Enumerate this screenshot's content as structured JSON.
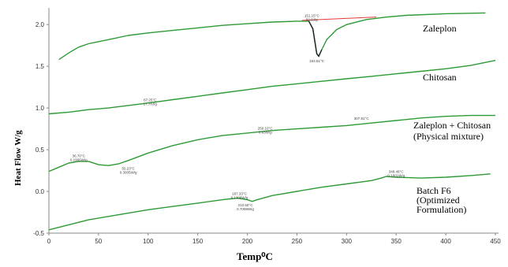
{
  "chart_data": {
    "type": "line",
    "xlabel": "Temp⁰C",
    "ylabel": "Heat Flow W/g",
    "xlim": [
      0,
      450
    ],
    "ylim": [
      -0.5,
      2.2
    ],
    "x_ticks": [
      "0",
      "50",
      "100",
      "150",
      "200",
      "250",
      "300",
      "350",
      "400",
      "450"
    ],
    "y_ticks": [
      "2.0",
      "1.5",
      "1.0",
      "0.5",
      "0.0",
      "-0.5"
    ],
    "grid": false,
    "legend": "right side, label beside each curve",
    "line_color": "#2e9a35",
    "baseline_color": "#e53935",
    "peak_color": "#222222",
    "series": [
      {
        "name": "Zaleplon",
        "points": [
          [
            10,
            1.58
          ],
          [
            20,
            1.66
          ],
          [
            30,
            1.73
          ],
          [
            40,
            1.77
          ],
          [
            60,
            1.82
          ],
          [
            80,
            1.87
          ],
          [
            100,
            1.9
          ],
          [
            125,
            1.93
          ],
          [
            150,
            1.96
          ],
          [
            175,
            1.99
          ],
          [
            200,
            2.01
          ],
          [
            225,
            2.03
          ],
          [
            250,
            2.04
          ],
          [
            262,
            2.04
          ],
          [
            266,
            1.95
          ],
          [
            268,
            1.8
          ],
          [
            270,
            1.65
          ],
          [
            272,
            1.62
          ],
          [
            275,
            1.7
          ],
          [
            280,
            1.82
          ],
          [
            290,
            1.94
          ],
          [
            300,
            2.0
          ],
          [
            320,
            2.06
          ],
          [
            340,
            2.09
          ],
          [
            360,
            2.11
          ],
          [
            400,
            2.13
          ],
          [
            440,
            2.14
          ]
        ]
      },
      {
        "name": "Chitosan",
        "points": [
          [
            0,
            0.93
          ],
          [
            20,
            0.95
          ],
          [
            40,
            0.98
          ],
          [
            60,
            1.0
          ],
          [
            80,
            1.03
          ],
          [
            100,
            1.06
          ],
          [
            125,
            1.1
          ],
          [
            150,
            1.14
          ],
          [
            175,
            1.18
          ],
          [
            200,
            1.22
          ],
          [
            225,
            1.26
          ],
          [
            250,
            1.29
          ],
          [
            275,
            1.32
          ],
          [
            300,
            1.35
          ],
          [
            325,
            1.38
          ],
          [
            350,
            1.41
          ],
          [
            375,
            1.44
          ],
          [
            400,
            1.47
          ],
          [
            425,
            1.51
          ],
          [
            450,
            1.57
          ]
        ]
      },
      {
        "name": "Zaleplon + Chitosan (Physical mixture)",
        "points": [
          [
            0,
            0.24
          ],
          [
            10,
            0.29
          ],
          [
            20,
            0.34
          ],
          [
            30,
            0.36
          ],
          [
            40,
            0.36
          ],
          [
            50,
            0.32
          ],
          [
            60,
            0.31
          ],
          [
            70,
            0.33
          ],
          [
            80,
            0.37
          ],
          [
            100,
            0.46
          ],
          [
            125,
            0.55
          ],
          [
            150,
            0.62
          ],
          [
            175,
            0.67
          ],
          [
            200,
            0.7
          ],
          [
            225,
            0.73
          ],
          [
            250,
            0.75
          ],
          [
            275,
            0.77
          ],
          [
            300,
            0.79
          ],
          [
            325,
            0.82
          ],
          [
            350,
            0.85
          ],
          [
            375,
            0.88
          ],
          [
            400,
            0.9
          ],
          [
            425,
            0.91
          ],
          [
            450,
            0.91
          ]
        ]
      },
      {
        "name": "Batch F6 (Optimized Formulation)",
        "points": [
          [
            0,
            -0.46
          ],
          [
            20,
            -0.4
          ],
          [
            40,
            -0.34
          ],
          [
            60,
            -0.3
          ],
          [
            80,
            -0.26
          ],
          [
            100,
            -0.22
          ],
          [
            125,
            -0.18
          ],
          [
            150,
            -0.14
          ],
          [
            175,
            -0.1
          ],
          [
            190,
            -0.08
          ],
          [
            200,
            -0.1
          ],
          [
            205,
            -0.12
          ],
          [
            210,
            -0.1
          ],
          [
            225,
            -0.05
          ],
          [
            250,
            0.0
          ],
          [
            275,
            0.05
          ],
          [
            300,
            0.09
          ],
          [
            325,
            0.13
          ],
          [
            335,
            0.16
          ],
          [
            340,
            0.18
          ],
          [
            350,
            0.17
          ],
          [
            375,
            0.16
          ],
          [
            400,
            0.17
          ],
          [
            425,
            0.19
          ],
          [
            445,
            0.21
          ]
        ]
      }
    ],
    "red_baseline": [
      [
        255,
        2.05
      ],
      [
        330,
        2.09
      ]
    ],
    "peak_annotations": [
      {
        "lines": [
          "151.15°C",
          "50.0J/g"
        ],
        "x": 265,
        "y": 2.09
      },
      {
        "lines": [
          "163.51°C"
        ],
        "x": 270,
        "y": 1.55
      },
      {
        "lines": [
          "87.25°C",
          "17.78J/g"
        ],
        "x": 102,
        "y": 1.08
      },
      {
        "lines": [
          "36.70°C",
          "0.1906W/g"
        ],
        "x": 30,
        "y": 0.41
      },
      {
        "lines": [
          "55.23°C",
          "0.3005W/g"
        ],
        "x": 80,
        "y": 0.26
      },
      {
        "lines": [
          "250.10°C",
          "0.63W/g"
        ],
        "x": 218,
        "y": 0.74
      },
      {
        "lines": [
          "307.81°C"
        ],
        "x": 315,
        "y": 0.86
      },
      {
        "lines": [
          "187.33°C",
          "0.1308W/g"
        ],
        "x": 192,
        "y": -0.04
      },
      {
        "lines": [
          "210.60°C",
          "0.7008W/g"
        ],
        "x": 198,
        "y": -0.18
      },
      {
        "lines": [
          "348.48°C",
          "0.1801W/g"
        ],
        "x": 350,
        "y": 0.22
      }
    ]
  }
}
